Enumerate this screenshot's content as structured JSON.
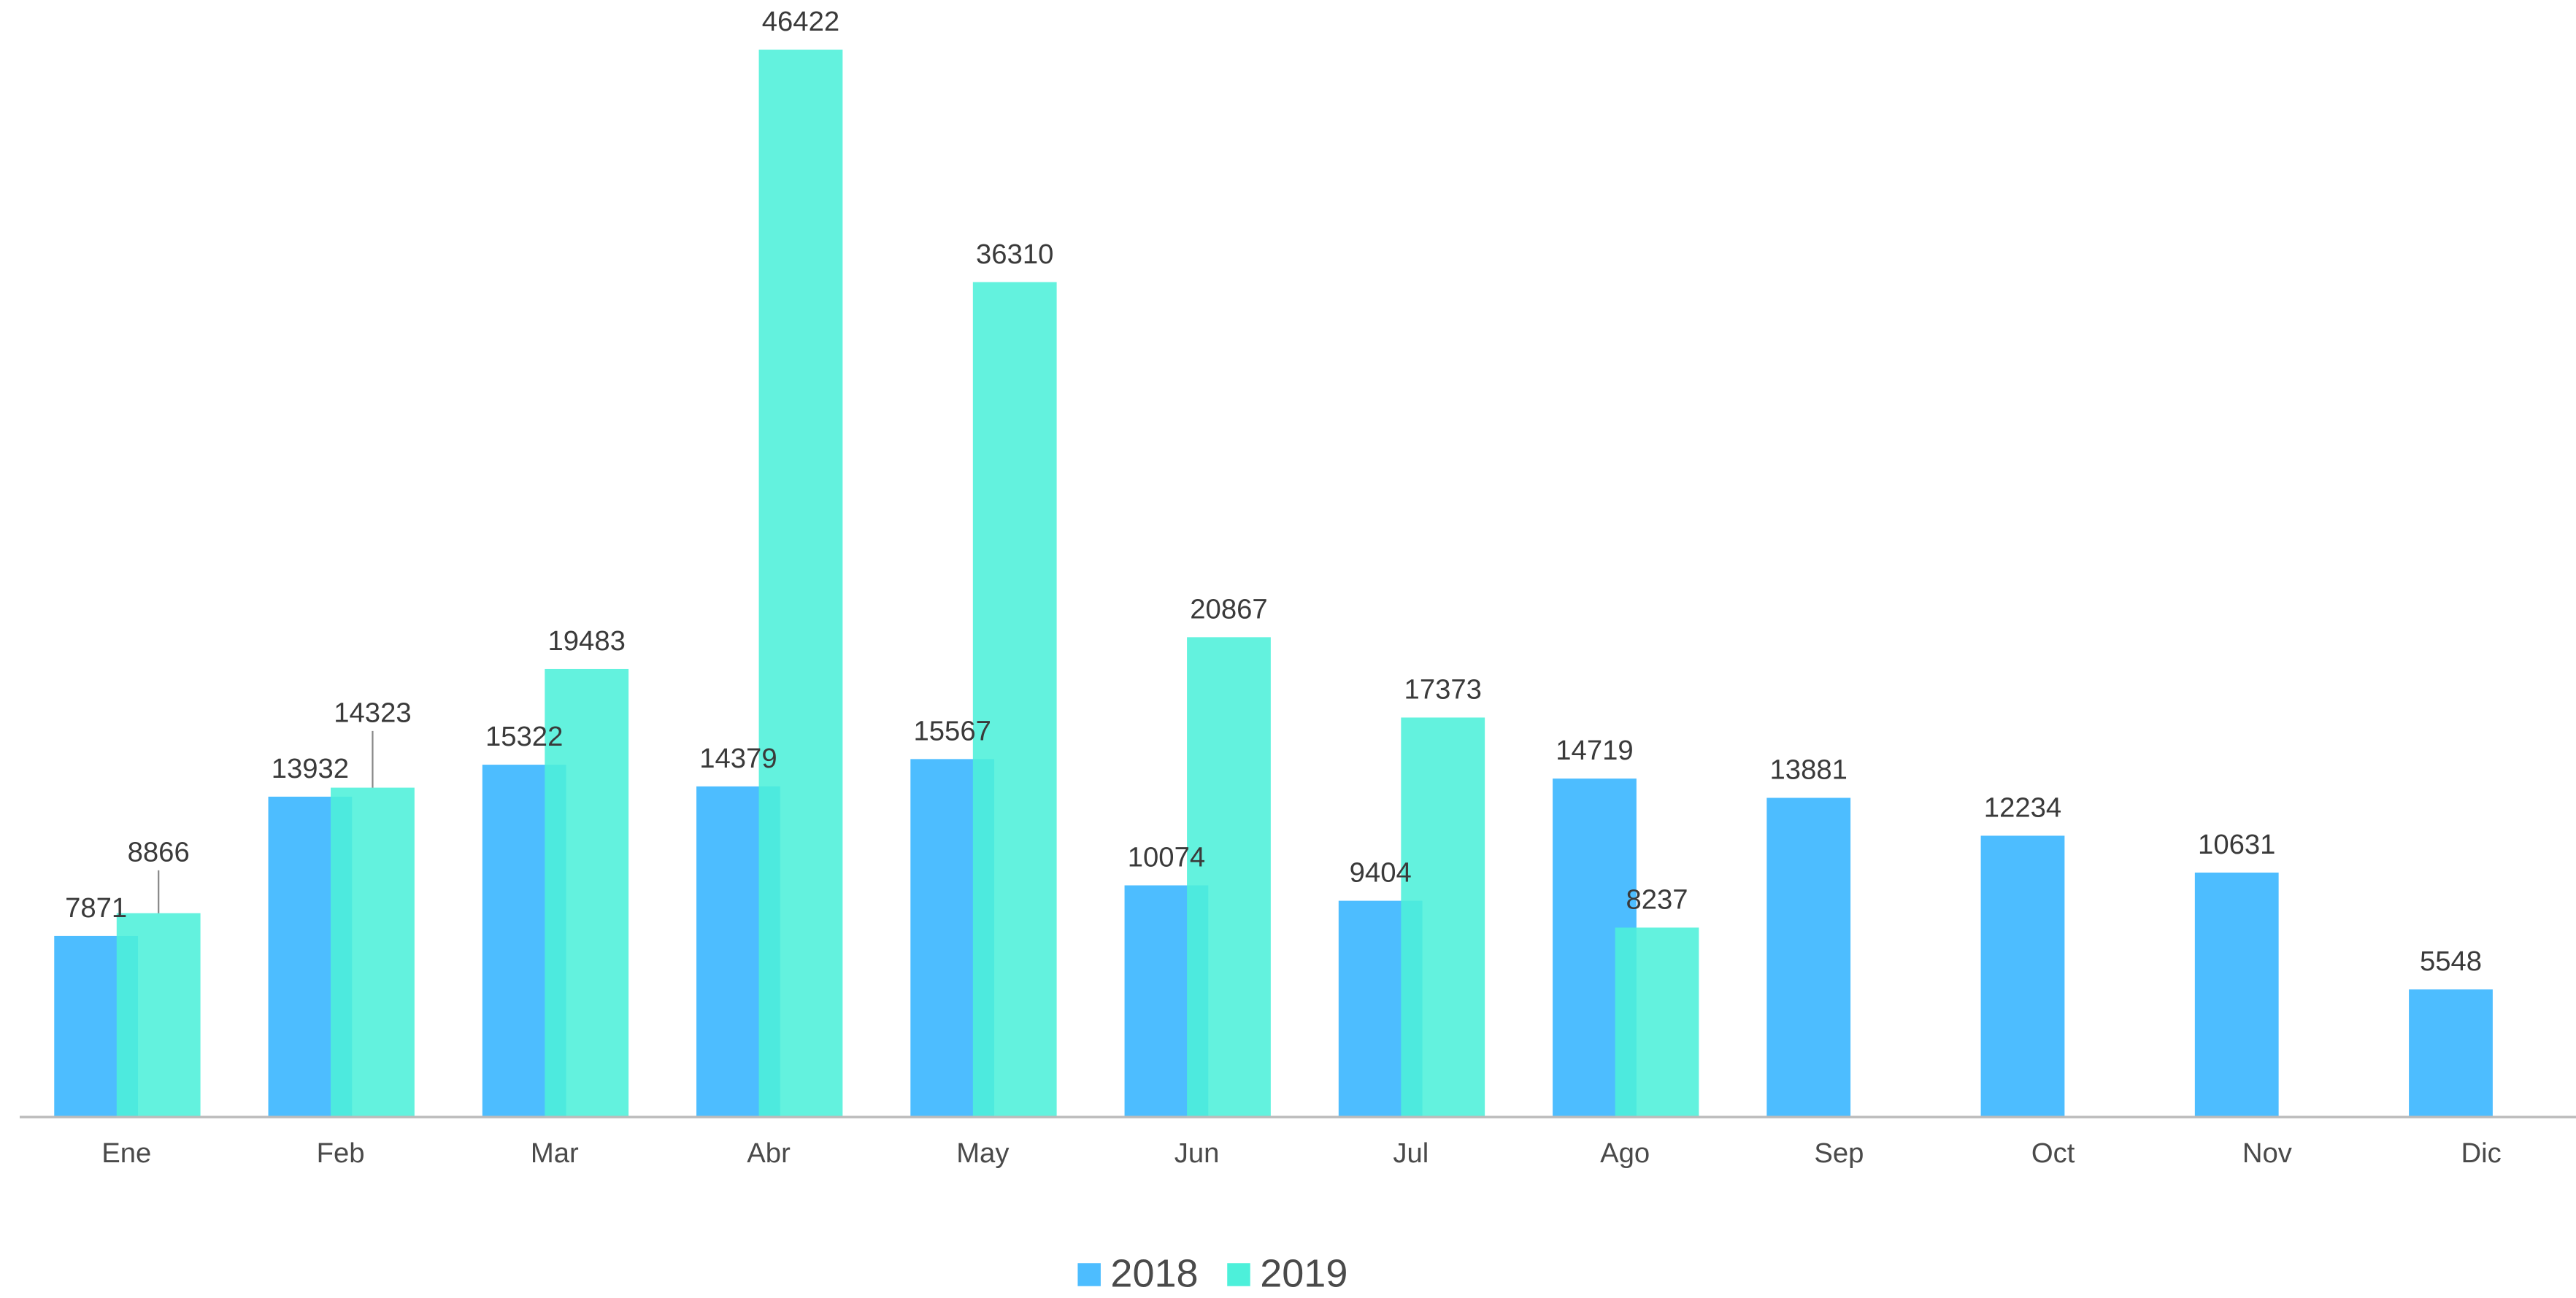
{
  "chart_data": {
    "type": "bar",
    "categories": [
      "Ene",
      "Feb",
      "Mar",
      "Abr",
      "May",
      "Jun",
      "Jul",
      "Ago",
      "Sep",
      "Oct",
      "Nov",
      "Dic"
    ],
    "series": [
      {
        "name": "2018",
        "color": "#4dbdff",
        "values": [
          7871,
          13932,
          15322,
          14379,
          15567,
          10074,
          9404,
          14719,
          13881,
          12234,
          10631,
          5548
        ]
      },
      {
        "name": "2019",
        "color": "#4df0da",
        "values": [
          8866,
          14323,
          19483,
          46422,
          36310,
          20867,
          17373,
          8237,
          null,
          null,
          null,
          null
        ]
      }
    ],
    "legend": "bottom"
  }
}
